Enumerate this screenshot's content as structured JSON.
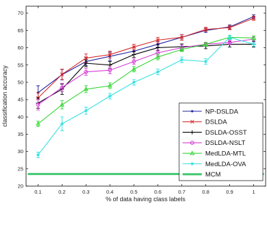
{
  "chart_data": {
    "type": "line",
    "title": "",
    "xlabel": "% of data having class labels",
    "ylabel": "classification accuracy",
    "xlim": [
      0.05,
      1.05
    ],
    "ylim": [
      20,
      72
    ],
    "xticks": [
      0.1,
      0.2,
      0.3,
      0.4,
      0.5,
      0.6,
      0.7,
      0.8,
      0.9,
      1
    ],
    "xtick_labels": [
      "0.1",
      "0.2",
      "0.3",
      "0.4",
      "0.5",
      "0.6",
      "0.7",
      "0.8",
      "0.9",
      "1"
    ],
    "yticks": [
      20,
      25,
      30,
      35,
      40,
      45,
      50,
      55,
      60,
      65,
      70
    ],
    "ytick_labels": [
      "20",
      "25",
      "30",
      "35",
      "40",
      "45",
      "50",
      "55",
      "60",
      "65",
      "70"
    ],
    "grid": false,
    "legend_position": "right",
    "x": [
      0.1,
      0.2,
      0.3,
      0.4,
      0.5,
      0.6,
      0.7,
      0.8,
      0.9,
      1.0
    ],
    "series": [
      {
        "name": "NP-DSLDA",
        "color": "#1f1f9e",
        "marker": "dot",
        "values": [
          47.0,
          52.2,
          56.0,
          57.5,
          59.0,
          61.0,
          63.0,
          65.0,
          66.0,
          69.0
        ],
        "err": [
          2.0,
          1.5,
          1.2,
          1.2,
          1.0,
          0.8,
          0.8,
          0.6,
          0.6,
          0.5
        ]
      },
      {
        "name": "DSLDA",
        "color": "#d62a2a",
        "marker": "x",
        "values": [
          45.5,
          52.3,
          57.0,
          58.0,
          60.2,
          62.2,
          63.0,
          65.3,
          65.8,
          68.5
        ],
        "err": [
          1.5,
          1.5,
          1.2,
          1.0,
          0.8,
          0.8,
          0.8,
          0.6,
          0.6,
          0.6
        ]
      },
      {
        "name": "DSLDA-OSST",
        "color": "#000000",
        "marker": "plus",
        "values": [
          44.0,
          48.0,
          55.5,
          55.0,
          58.0,
          60.0,
          60.3,
          60.5,
          61.0,
          61.0
        ],
        "err": [
          1.5,
          1.5,
          1.0,
          1.0,
          0.8,
          0.8,
          0.8,
          0.8,
          0.8,
          0.8
        ]
      },
      {
        "name": "DSLDA-NSLT",
        "color": "#d63ad6",
        "marker": "circle",
        "values": [
          43.5,
          48.5,
          53.0,
          53.5,
          56.0,
          58.5,
          60.0,
          61.0,
          61.5,
          62.5
        ],
        "err": [
          1.5,
          1.2,
          1.0,
          1.0,
          0.8,
          0.8,
          0.8,
          0.6,
          0.6,
          0.6
        ]
      },
      {
        "name": "MedLDA-MTL",
        "color": "#33d633",
        "marker": "triangle",
        "values": [
          38.0,
          43.5,
          48.0,
          49.0,
          53.8,
          57.3,
          59.5,
          61.0,
          63.0,
          62.8
        ],
        "err": [
          0.8,
          1.2,
          1.0,
          0.8,
          0.8,
          0.8,
          0.6,
          0.6,
          0.6,
          0.6
        ]
      },
      {
        "name": "MedLDA-OVA",
        "color": "#33e0e0",
        "marker": "star",
        "values": [
          29.0,
          38.0,
          41.8,
          46.0,
          50.0,
          53.0,
          56.5,
          56.0,
          63.0,
          61.0
        ],
        "err": [
          0.8,
          2.0,
          1.0,
          0.8,
          0.8,
          0.8,
          0.8,
          0.8,
          0.6,
          0.6
        ]
      },
      {
        "name": "MCM",
        "color": "#40c870",
        "marker": "none",
        "values": [
          23.5,
          23.5,
          23.5,
          23.5,
          23.5,
          23.5,
          23.5,
          23.5,
          23.5,
          23.5
        ],
        "err": [
          0,
          0,
          0,
          0,
          0,
          0,
          0,
          0,
          0,
          0
        ]
      }
    ]
  }
}
